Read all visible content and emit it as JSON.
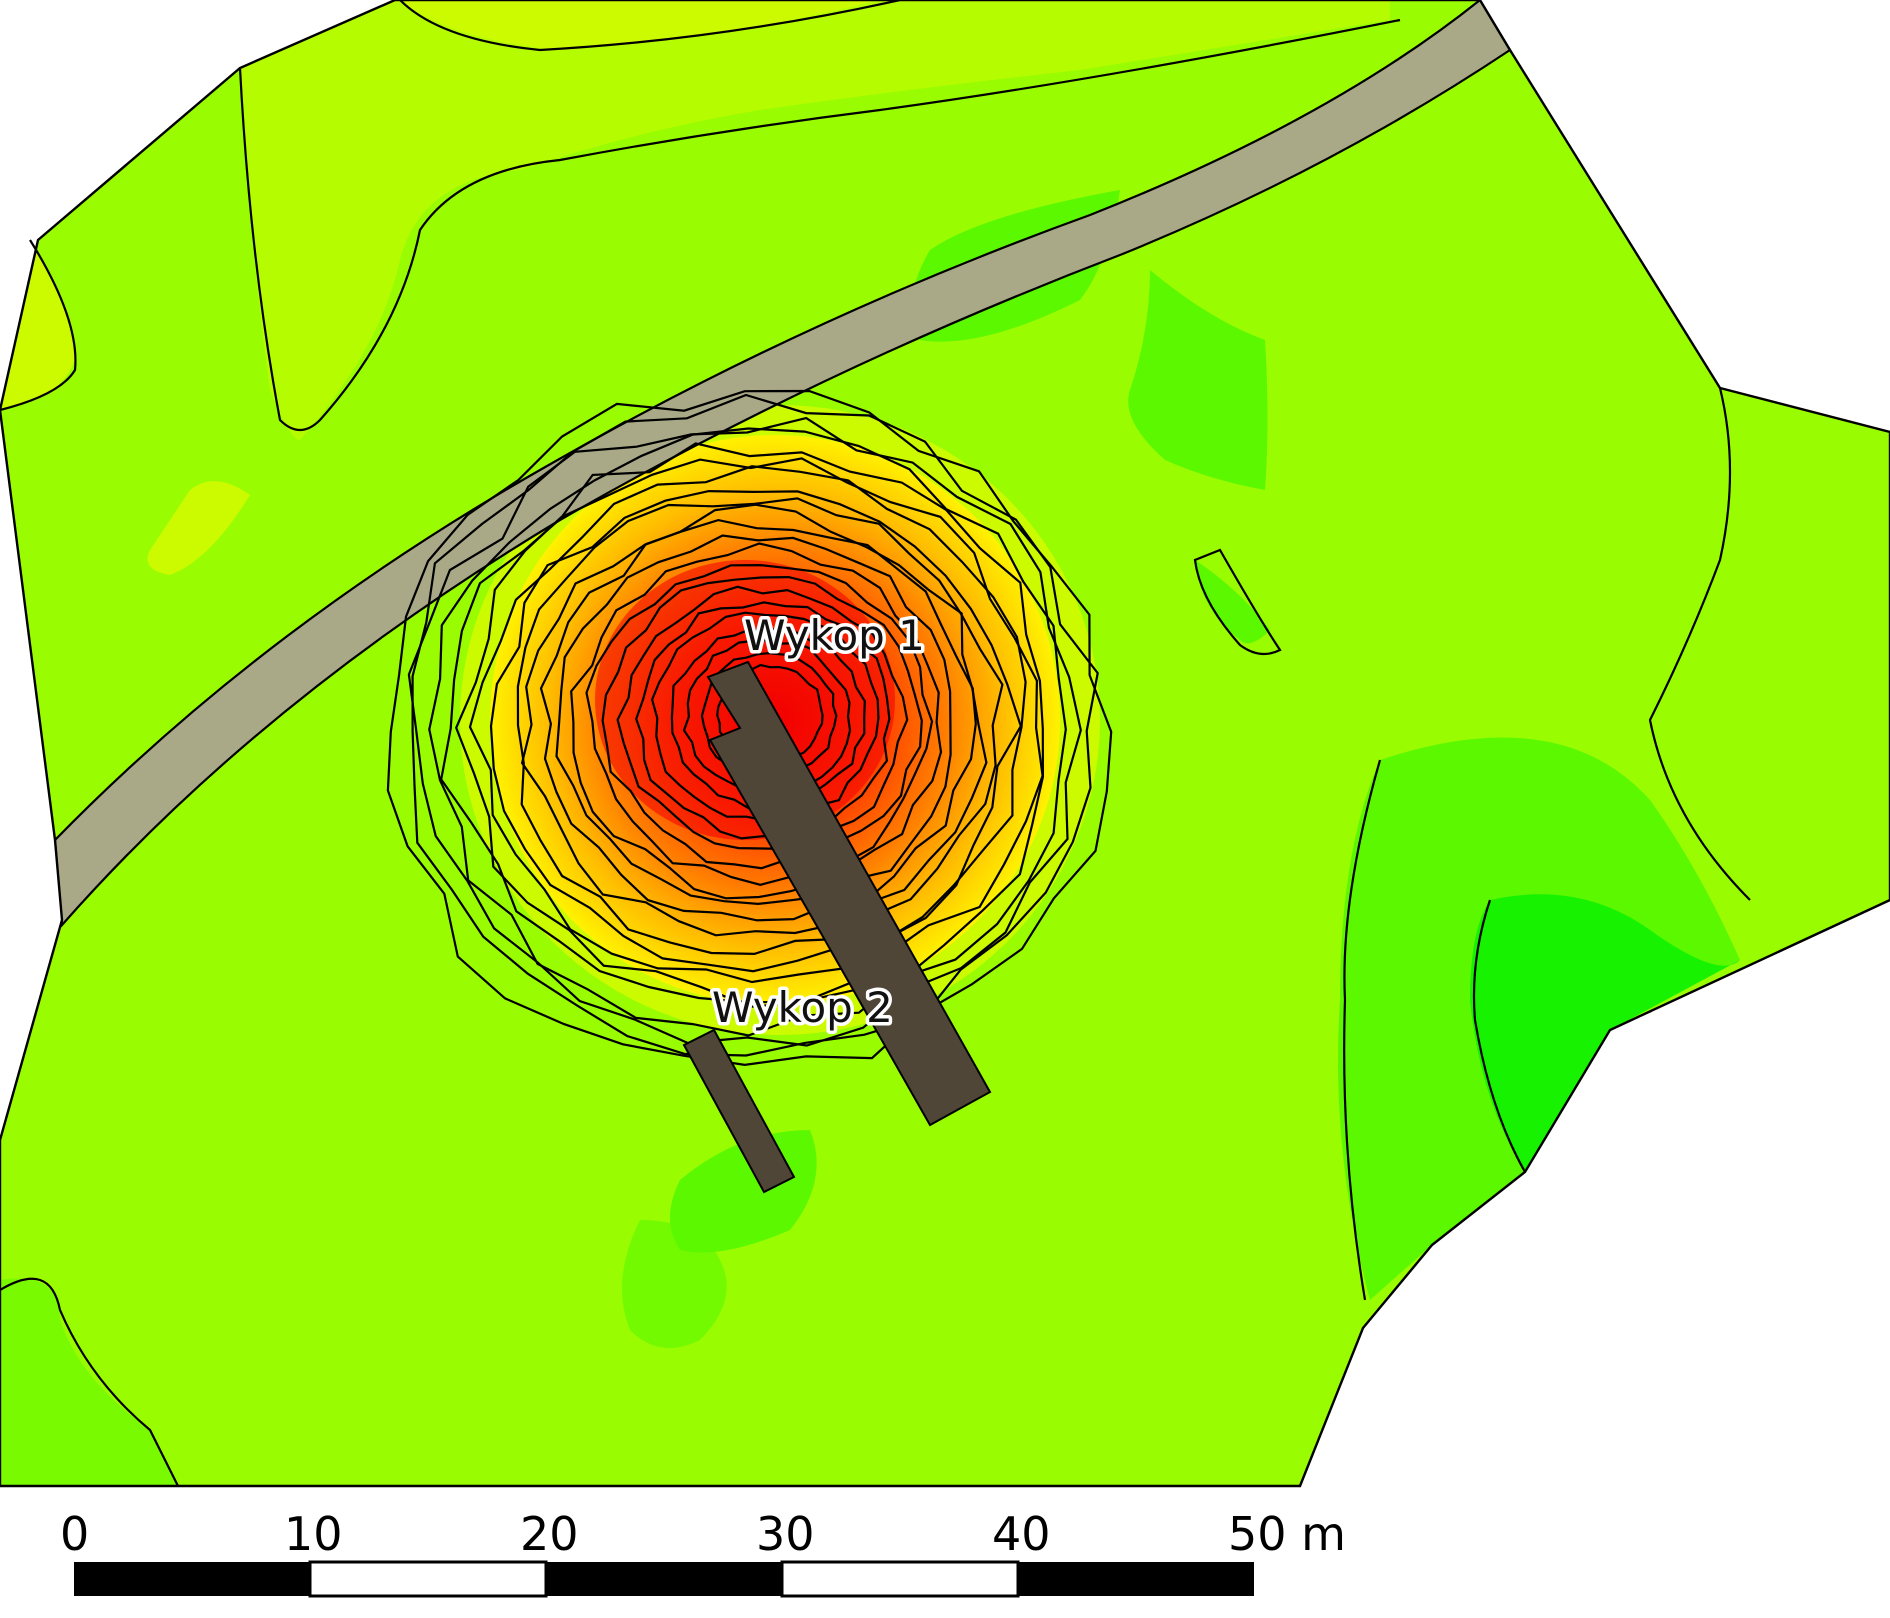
{
  "map": {
    "trenches": [
      {
        "label": "Wykop 1",
        "color": "#4f4637"
      },
      {
        "label": "Wykop 2",
        "color": "#4f4637"
      }
    ],
    "scale_bar": {
      "ticks": [
        "0",
        "10",
        "20",
        "30",
        "40",
        "50 m"
      ]
    },
    "colors": {
      "low": "#17f200",
      "mid_low": "#5cf800",
      "mid": "#99fc00",
      "mid_high": "#ccfb00",
      "high_yellow": "#fff200",
      "orange": "#ff8c00",
      "peak_red": "#f10000",
      "road": "#a9a987",
      "trench": "#4f4637"
    },
    "legend_icons": [
      "scale-bar-icon"
    ]
  }
}
